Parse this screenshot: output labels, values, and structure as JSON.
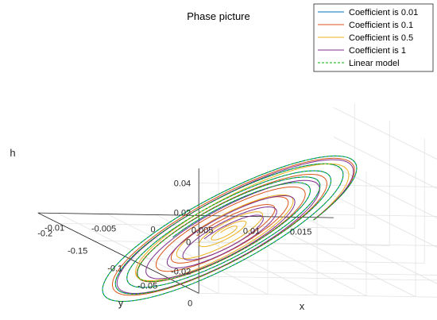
{
  "chart_data": {
    "type": "line",
    "projection": "3d",
    "title": "Phase picture",
    "xlabel": "x",
    "ylabel": "y",
    "zlabel": "h",
    "x_ticks": [
      "-0.01",
      "-0.005",
      "0",
      "0.005",
      "0.01",
      "0.015"
    ],
    "y_ticks": [
      "0",
      "-0.05",
      "-0.1",
      "-0.15",
      "-0.2"
    ],
    "z_ticks": [
      "-0.02",
      "0",
      "0.02",
      "0.04"
    ],
    "xlim": [
      -0.012,
      0.018
    ],
    "ylim": [
      -0.23,
      0.0
    ],
    "zlim": [
      -0.035,
      0.05
    ],
    "grid": true,
    "legend_position": "top-right",
    "series": [
      {
        "name": "Coefficient is 0.01",
        "color": "#0072bd",
        "style": "solid",
        "decay": 0.1,
        "hshift": 0.0
      },
      {
        "name": "Coefficient is 0.1",
        "color": "#d95319",
        "style": "solid",
        "decay": 0.22,
        "hshift": -0.003
      },
      {
        "name": "Coefficient is 0.5",
        "color": "#edb120",
        "style": "solid",
        "decay": 0.55,
        "hshift": -0.002
      },
      {
        "name": "Coefficient is 1",
        "color": "#7e2f8e",
        "style": "solid",
        "decay": 0.28,
        "hshift": -0.01
      },
      {
        "name": "Linear model",
        "color": "#00b000",
        "style": "dashed",
        "decay": 0.1,
        "hshift": 0.0
      }
    ],
    "trajectory": {
      "start": [
        0.0,
        -0.005,
        0.015
      ],
      "equilibrium": [
        0.0,
        -0.13,
        -0.022
      ],
      "turns": 4.5
    }
  }
}
